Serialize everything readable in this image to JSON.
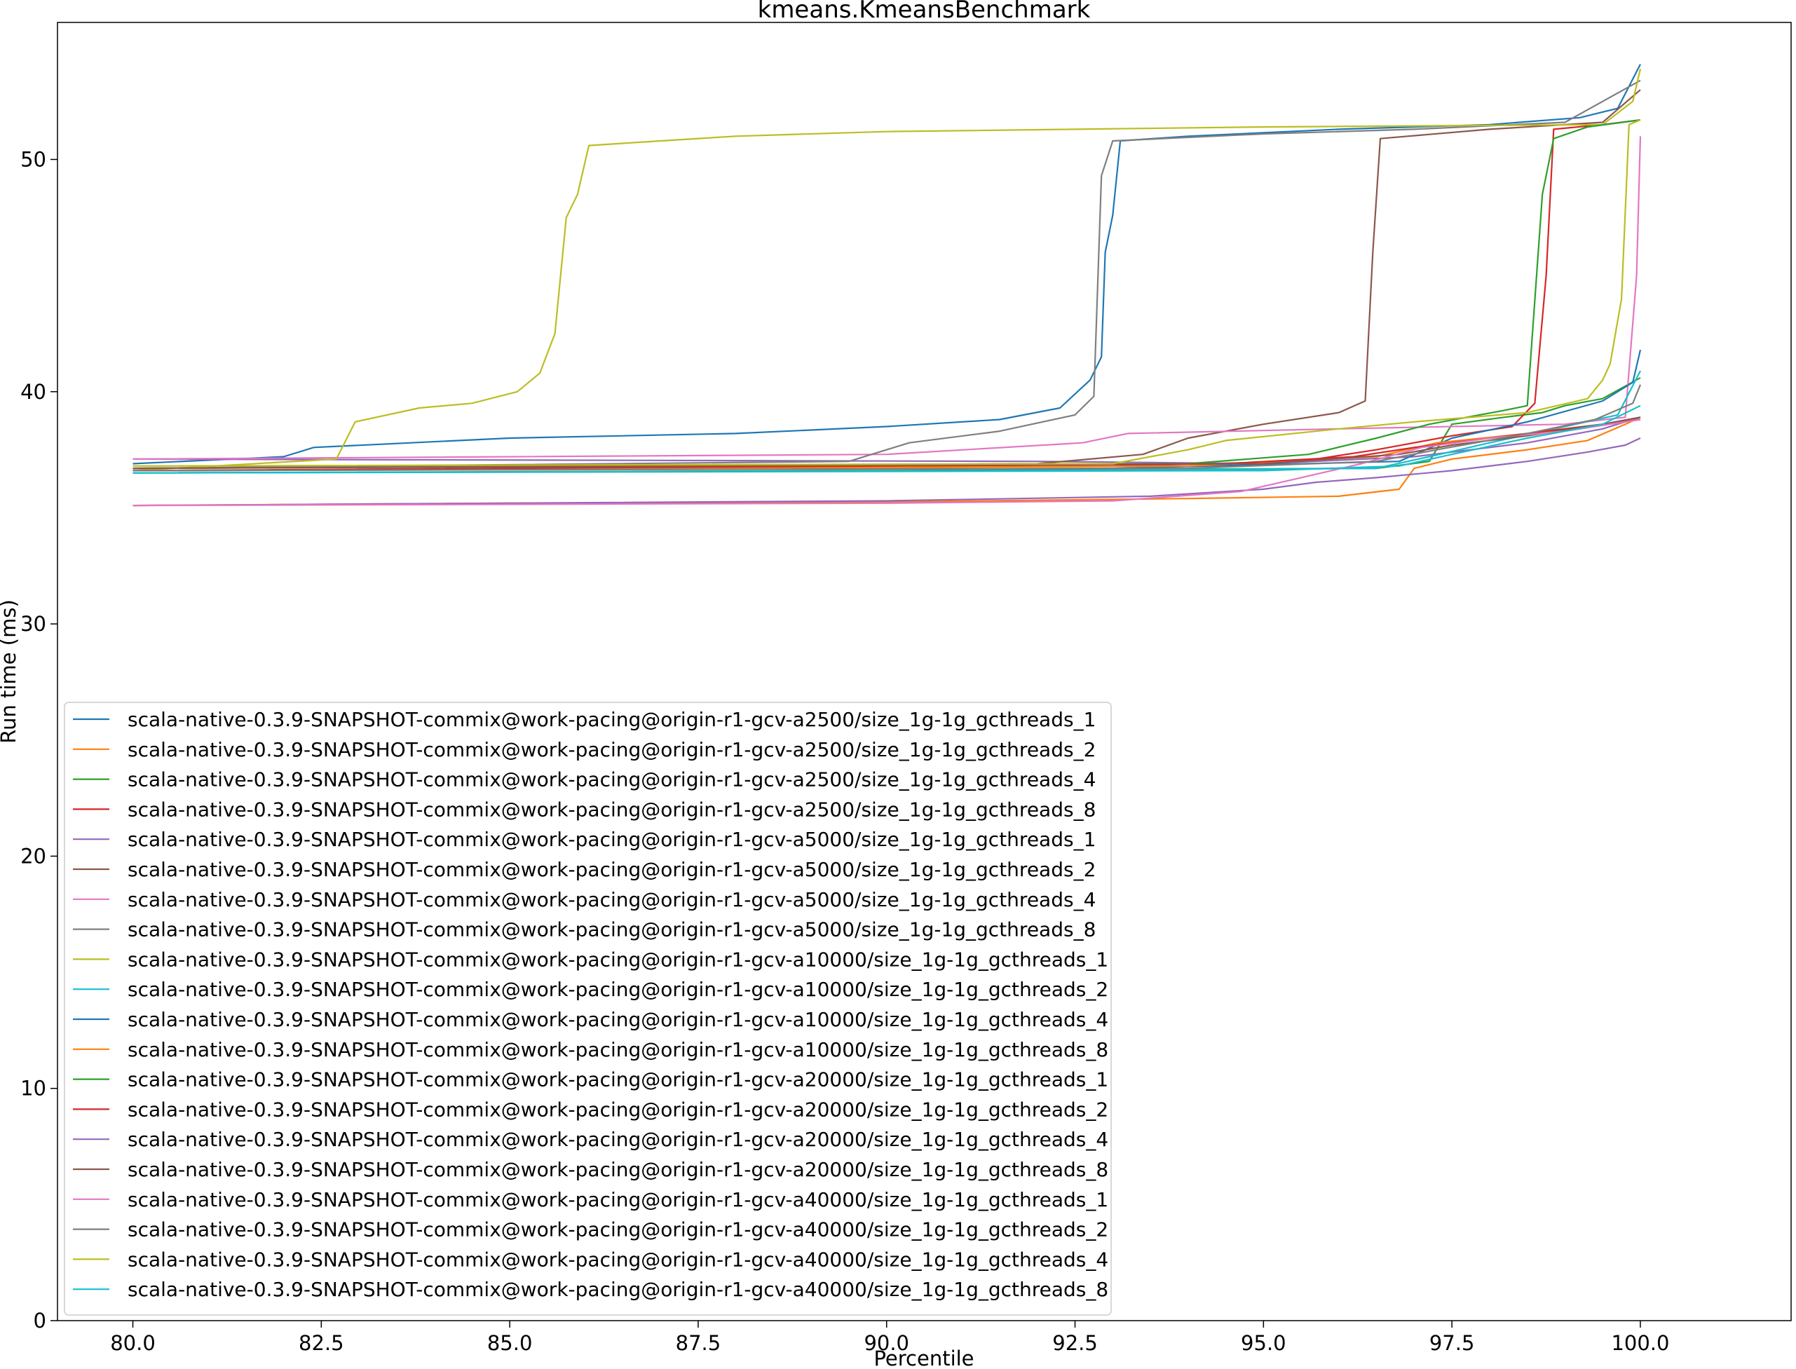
{
  "chart_data": {
    "type": "line",
    "title": "kmeans.KmeansBenchmark",
    "xlabel": "Percentile",
    "ylabel": "Run time (ms)",
    "xlim": [
      79,
      102
    ],
    "ylim": [
      0,
      55.9
    ],
    "xticks": [
      "80.0",
      "82.5",
      "85.0",
      "87.5",
      "90.0",
      "92.5",
      "95.0",
      "97.5",
      "100.0"
    ],
    "xtick_values": [
      80,
      82.5,
      85,
      87.5,
      90,
      92.5,
      95,
      97.5,
      100
    ],
    "yticks": [
      "0",
      "10",
      "20",
      "30",
      "40",
      "50"
    ],
    "ytick_values": [
      0,
      10,
      20,
      30,
      40,
      50
    ],
    "grid": false,
    "legend_position": "lower-left",
    "series": [
      {
        "name": "scala-native-0.3.9-SNAPSHOT-commix@work-pacing@origin-r1-gcv-a2500/size_1g-1g_gcthreads_1",
        "color": "#1f77b4",
        "points": [
          [
            80,
            36.9
          ],
          [
            82,
            37.2
          ],
          [
            82.4,
            37.6
          ],
          [
            85,
            38.0
          ],
          [
            88,
            38.2
          ],
          [
            90,
            38.5
          ],
          [
            91.5,
            38.8
          ],
          [
            92.3,
            39.3
          ],
          [
            92.7,
            40.5
          ],
          [
            92.85,
            41.5
          ],
          [
            92.9,
            46
          ],
          [
            93.0,
            47.6
          ],
          [
            93.1,
            50.8
          ],
          [
            94,
            51.0
          ],
          [
            96,
            51.3
          ],
          [
            98,
            51.5
          ],
          [
            99.2,
            51.8
          ],
          [
            99.7,
            52.2
          ],
          [
            100,
            54.1
          ]
        ]
      },
      {
        "name": "scala-native-0.3.9-SNAPSHOT-commix@work-pacing@origin-r1-gcv-a2500/size_1g-1g_gcthreads_2",
        "color": "#ff7f0e",
        "points": [
          [
            80,
            35.1
          ],
          [
            85,
            35.2
          ],
          [
            90,
            35.25
          ],
          [
            94,
            35.4
          ],
          [
            96,
            35.5
          ],
          [
            96.8,
            35.8
          ],
          [
            97.0,
            36.7
          ],
          [
            97.5,
            37.1
          ],
          [
            98.5,
            37.5
          ],
          [
            99.3,
            37.9
          ],
          [
            99.8,
            38.6
          ],
          [
            100,
            38.9
          ]
        ]
      },
      {
        "name": "scala-native-0.3.9-SNAPSHOT-commix@work-pacing@origin-r1-gcv-a2500/size_1g-1g_gcthreads_4",
        "color": "#2ca02c",
        "points": [
          [
            80,
            36.5
          ],
          [
            90,
            36.6
          ],
          [
            96.5,
            36.7
          ],
          [
            97.2,
            37.0
          ],
          [
            97.5,
            38.6
          ],
          [
            98.2,
            38.9
          ],
          [
            98.7,
            39.1
          ],
          [
            99,
            39.4
          ],
          [
            99.5,
            39.7
          ],
          [
            100,
            40.6
          ]
        ]
      },
      {
        "name": "scala-native-0.3.9-SNAPSHOT-commix@work-pacing@origin-r1-gcv-a2500/size_1g-1g_gcthreads_8",
        "color": "#d62728",
        "points": [
          [
            80,
            36.6
          ],
          [
            93,
            36.8
          ],
          [
            95.5,
            37.0
          ],
          [
            96.5,
            37.5
          ],
          [
            97.5,
            38.1
          ],
          [
            98.3,
            38.5
          ],
          [
            98.6,
            39.5
          ],
          [
            98.75,
            45
          ],
          [
            98.85,
            51.3
          ],
          [
            99.5,
            51.5
          ],
          [
            100,
            51.7
          ]
        ]
      },
      {
        "name": "scala-native-0.3.9-SNAPSHOT-commix@work-pacing@origin-r1-gcv-a5000/size_1g-1g_gcthreads_1",
        "color": "#9467bd",
        "points": [
          [
            80,
            37.1
          ],
          [
            92,
            37.0
          ],
          [
            95,
            36.9
          ],
          [
            97,
            37.2
          ],
          [
            98.5,
            37.8
          ],
          [
            99.5,
            38.4
          ],
          [
            100,
            38.9
          ]
        ]
      },
      {
        "name": "scala-native-0.3.9-SNAPSHOT-commix@work-pacing@origin-r1-gcv-a5000/size_1g-1g_gcthreads_2",
        "color": "#8c564b",
        "points": [
          [
            80,
            36.7
          ],
          [
            92,
            36.9
          ],
          [
            93.4,
            37.3
          ],
          [
            94,
            38.0
          ],
          [
            95,
            38.6
          ],
          [
            96,
            39.1
          ],
          [
            96.35,
            39.6
          ],
          [
            96.45,
            46
          ],
          [
            96.55,
            50.9
          ],
          [
            98,
            51.3
          ],
          [
            99.5,
            51.6
          ],
          [
            100,
            53.0
          ]
        ]
      },
      {
        "name": "scala-native-0.3.9-SNAPSHOT-commix@work-pacing@origin-r1-gcv-a5000/size_1g-1g_gcthreads_4",
        "color": "#e377c2",
        "points": [
          [
            80,
            37.1
          ],
          [
            90,
            37.3
          ],
          [
            92.6,
            37.8
          ],
          [
            93.2,
            38.2
          ],
          [
            96,
            38.4
          ],
          [
            99,
            38.6
          ],
          [
            99.8,
            38.9
          ],
          [
            99.95,
            45
          ],
          [
            100,
            51.0
          ]
        ]
      },
      {
        "name": "scala-native-0.3.9-SNAPSHOT-commix@work-pacing@origin-r1-gcv-a5000/size_1g-1g_gcthreads_8",
        "color": "#7f7f7f",
        "points": [
          [
            80,
            36.7
          ],
          [
            89.5,
            37.0
          ],
          [
            90.3,
            37.8
          ],
          [
            91.5,
            38.3
          ],
          [
            92.5,
            39.0
          ],
          [
            92.75,
            39.8
          ],
          [
            92.85,
            49.3
          ],
          [
            93.0,
            50.8
          ],
          [
            95,
            51.1
          ],
          [
            97,
            51.3
          ],
          [
            99,
            51.6
          ],
          [
            100,
            53.4
          ]
        ]
      },
      {
        "name": "scala-native-0.3.9-SNAPSHOT-commix@work-pacing@origin-r1-gcv-a10000/size_1g-1g_gcthreads_1",
        "color": "#bcbd22",
        "points": [
          [
            80,
            36.6
          ],
          [
            82.7,
            37.1
          ],
          [
            82.95,
            38.7
          ],
          [
            83.8,
            39.3
          ],
          [
            84.5,
            39.5
          ],
          [
            85.1,
            40.0
          ],
          [
            85.4,
            40.8
          ],
          [
            85.6,
            42.5
          ],
          [
            85.75,
            47.5
          ],
          [
            85.9,
            48.5
          ],
          [
            86.05,
            50.6
          ],
          [
            87,
            50.8
          ],
          [
            88,
            51.0
          ],
          [
            90,
            51.2
          ],
          [
            95,
            51.4
          ],
          [
            99.5,
            51.5
          ],
          [
            99.9,
            52.5
          ],
          [
            100,
            53.9
          ]
        ]
      },
      {
        "name": "scala-native-0.3.9-SNAPSHOT-commix@work-pacing@origin-r1-gcv-a10000/size_1g-1g_gcthreads_2",
        "color": "#17becf",
        "points": [
          [
            80,
            36.5
          ],
          [
            92,
            36.6
          ],
          [
            96.5,
            36.7
          ],
          [
            97.2,
            37.2
          ],
          [
            98,
            37.8
          ],
          [
            99,
            38.5
          ],
          [
            99.7,
            39.0
          ],
          [
            100,
            40.9
          ]
        ]
      },
      {
        "name": "scala-native-0.3.9-SNAPSHOT-commix@work-pacing@origin-r1-gcv-a10000/size_1g-1g_gcthreads_4",
        "color": "#1f77b4",
        "points": [
          [
            80,
            36.6
          ],
          [
            93,
            36.7
          ],
          [
            96.8,
            37.0
          ],
          [
            97.5,
            38.0
          ],
          [
            98.5,
            38.7
          ],
          [
            99.5,
            39.6
          ],
          [
            99.9,
            40.4
          ],
          [
            100,
            41.8
          ]
        ]
      },
      {
        "name": "scala-native-0.3.9-SNAPSHOT-commix@work-pacing@origin-r1-gcv-a10000/size_1g-1g_gcthreads_8",
        "color": "#ff7f0e",
        "points": [
          [
            80,
            36.6
          ],
          [
            94,
            36.8
          ],
          [
            96.5,
            37.2
          ],
          [
            97.3,
            37.8
          ],
          [
            98.5,
            38.2
          ],
          [
            99.5,
            38.6
          ],
          [
            100,
            38.8
          ]
        ]
      },
      {
        "name": "scala-native-0.3.9-SNAPSHOT-commix@work-pacing@origin-r1-gcv-a20000/size_1g-1g_gcthreads_1",
        "color": "#2ca02c",
        "points": [
          [
            80,
            36.7
          ],
          [
            94,
            36.9
          ],
          [
            95.6,
            37.3
          ],
          [
            96.5,
            38.0
          ],
          [
            97.2,
            38.6
          ],
          [
            98.2,
            39.2
          ],
          [
            98.5,
            39.4
          ],
          [
            98.7,
            48.5
          ],
          [
            98.85,
            50.9
          ],
          [
            99.3,
            51.4
          ],
          [
            100,
            51.7
          ]
        ]
      },
      {
        "name": "scala-native-0.3.9-SNAPSHOT-commix@work-pacing@origin-r1-gcv-a20000/size_1g-1g_gcthreads_2",
        "color": "#d62728",
        "points": [
          [
            80,
            36.6
          ],
          [
            94.5,
            36.9
          ],
          [
            96.2,
            37.2
          ],
          [
            97,
            37.6
          ],
          [
            98,
            38.0
          ],
          [
            99,
            38.4
          ],
          [
            100,
            38.8
          ]
        ]
      },
      {
        "name": "scala-native-0.3.9-SNAPSHOT-commix@work-pacing@origin-r1-gcv-a20000/size_1g-1g_gcthreads_4",
        "color": "#9467bd",
        "points": [
          [
            80,
            35.1
          ],
          [
            90,
            35.3
          ],
          [
            93.5,
            35.5
          ],
          [
            95,
            35.8
          ],
          [
            95.7,
            36.1
          ],
          [
            96.5,
            36.3
          ],
          [
            97.5,
            36.6
          ],
          [
            98.5,
            37.0
          ],
          [
            99.3,
            37.4
          ],
          [
            99.8,
            37.7
          ],
          [
            100,
            38.0
          ]
        ]
      },
      {
        "name": "scala-native-0.3.9-SNAPSHOT-commix@work-pacing@origin-r1-gcv-a20000/size_1g-1g_gcthreads_8",
        "color": "#8c564b",
        "points": [
          [
            80,
            36.7
          ],
          [
            95,
            36.9
          ],
          [
            96.8,
            37.3
          ],
          [
            97.5,
            37.7
          ],
          [
            98.5,
            38.1
          ],
          [
            99.5,
            38.6
          ],
          [
            100,
            38.9
          ]
        ]
      },
      {
        "name": "scala-native-0.3.9-SNAPSHOT-commix@work-pacing@origin-r1-gcv-a40000/size_1g-1g_gcthreads_1",
        "color": "#e377c2",
        "points": [
          [
            80,
            35.1
          ],
          [
            90,
            35.2
          ],
          [
            93,
            35.3
          ],
          [
            94.7,
            35.7
          ],
          [
            95.5,
            36.3
          ],
          [
            96.3,
            36.9
          ],
          [
            97.1,
            37.6
          ],
          [
            98,
            38.0
          ],
          [
            99,
            38.3
          ],
          [
            100,
            38.8
          ]
        ]
      },
      {
        "name": "scala-native-0.3.9-SNAPSHOT-commix@work-pacing@origin-r1-gcv-a40000/size_1g-1g_gcthreads_2",
        "color": "#7f7f7f",
        "points": [
          [
            80,
            36.6
          ],
          [
            94,
            36.7
          ],
          [
            96.5,
            37.0
          ],
          [
            97.3,
            37.5
          ],
          [
            98.5,
            38.2
          ],
          [
            99.4,
            38.8
          ],
          [
            99.9,
            39.5
          ],
          [
            100,
            40.3
          ]
        ]
      },
      {
        "name": "scala-native-0.3.9-SNAPSHOT-commix@work-pacing@origin-r1-gcv-a40000/size_1g-1g_gcthreads_4",
        "color": "#bcbd22",
        "points": [
          [
            80,
            36.8
          ],
          [
            93,
            36.9
          ],
          [
            94,
            37.5
          ],
          [
            94.5,
            37.9
          ],
          [
            96,
            38.4
          ],
          [
            97,
            38.7
          ],
          [
            98.5,
            39.1
          ],
          [
            99.3,
            39.7
          ],
          [
            99.5,
            40.5
          ],
          [
            99.6,
            41.2
          ],
          [
            99.75,
            44
          ],
          [
            99.85,
            51.5
          ],
          [
            100,
            51.7
          ]
        ]
      },
      {
        "name": "scala-native-0.3.9-SNAPSHOT-commix@work-pacing@origin-r1-gcv-a40000/size_1g-1g_gcthreads_8",
        "color": "#17becf",
        "points": [
          [
            80,
            36.5
          ],
          [
            95,
            36.6
          ],
          [
            96.8,
            36.8
          ],
          [
            97.5,
            37.3
          ],
          [
            98.5,
            38.0
          ],
          [
            99.5,
            38.6
          ],
          [
            100,
            39.4
          ]
        ]
      }
    ]
  }
}
